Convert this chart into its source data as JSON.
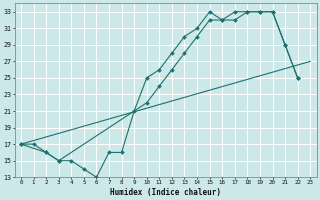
{
  "xlabel": "Humidex (Indice chaleur)",
  "xlim": [
    -0.5,
    23.5
  ],
  "ylim": [
    13,
    34
  ],
  "xticks": [
    0,
    1,
    2,
    3,
    4,
    5,
    6,
    7,
    8,
    9,
    10,
    11,
    12,
    13,
    14,
    15,
    16,
    17,
    18,
    19,
    20,
    21,
    22,
    23
  ],
  "yticks": [
    13,
    15,
    17,
    19,
    21,
    23,
    25,
    27,
    29,
    31,
    33
  ],
  "bg_color": "#cce8e8",
  "line_color": "#1e7070",
  "grid_color": "#ffffff",
  "series1_x": [
    0,
    1,
    2,
    3,
    4,
    5,
    6,
    7,
    8,
    9,
    10,
    11,
    12,
    13,
    14,
    15,
    16,
    17,
    18,
    19,
    20,
    21,
    22
  ],
  "series1_y": [
    17,
    17,
    16,
    15,
    15,
    14,
    13,
    16,
    16,
    21,
    25,
    26,
    28,
    30,
    31,
    33,
    32,
    33,
    33,
    33,
    33,
    29,
    25
  ],
  "series2_x": [
    0,
    2,
    3,
    10,
    11,
    12,
    13,
    14,
    15,
    16,
    17,
    18,
    19,
    20,
    21,
    22
  ],
  "series2_y": [
    17,
    16,
    15,
    22,
    24,
    26,
    28,
    30,
    32,
    32,
    32,
    33,
    33,
    33,
    29,
    25
  ],
  "series3_x": [
    0,
    23
  ],
  "series3_y": [
    17,
    27
  ]
}
